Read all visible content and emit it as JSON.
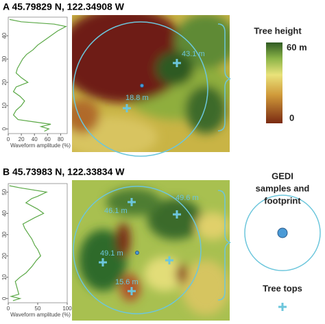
{
  "chart_data": [
    {
      "type": "line",
      "xlabel": "Waveform amplitude (%)",
      "color": "#5aa845",
      "x": [
        55,
        62,
        50,
        65,
        40,
        15,
        8,
        12,
        20,
        25,
        18,
        8,
        12,
        30,
        20,
        12,
        14,
        18,
        22,
        28,
        38,
        45,
        55,
        65,
        75,
        88,
        70,
        20,
        2
      ],
      "values": [
        -1,
        0,
        1,
        2,
        3,
        4,
        6,
        8,
        10,
        12,
        14,
        16,
        18,
        20,
        22,
        24,
        26,
        28,
        30,
        32,
        34,
        36,
        38,
        40,
        42,
        44,
        45,
        46,
        47
      ],
      "xlim": [
        0,
        90
      ],
      "xticks": [
        0,
        20,
        40,
        60,
        80
      ],
      "ylim": [
        -2,
        48
      ],
      "yticks": [
        0,
        10,
        20,
        30,
        40
      ]
    },
    {
      "type": "line",
      "xlabel": "Waveform amplitude (%)",
      "color": "#5aa845",
      "x": [
        8,
        20,
        5,
        18,
        15,
        12,
        20,
        30,
        40,
        48,
        55,
        50,
        45,
        40,
        35,
        28,
        25,
        45,
        60,
        50,
        30,
        40,
        50,
        65,
        20,
        2
      ],
      "values": [
        -1,
        0,
        1,
        2,
        5,
        8,
        10,
        12,
        15,
        18,
        20,
        23,
        25,
        28,
        30,
        33,
        35,
        38,
        40,
        42,
        45,
        47,
        48,
        50,
        52,
        53
      ],
      "xlim": [
        0,
        100
      ],
      "xticks": [
        0,
        50,
        100
      ],
      "ylim": [
        -2,
        54
      ],
      "yticks": [
        0,
        10,
        20,
        30,
        40,
        50
      ]
    }
  ],
  "panels": [
    {
      "title": "A 45.79829 N, 122.34908 W",
      "tree_tops": [
        "43.1 m",
        "18.8 m"
      ]
    },
    {
      "title": "B 45.73983 N, 122.33834 W",
      "tree_tops": [
        "46.1 m",
        "49.6 m",
        "49.1 m",
        "15.6 m"
      ]
    }
  ],
  "legend": {
    "title": "Tree height",
    "max": "60 m",
    "min": "0",
    "gedi": [
      "GEDI",
      "samples and",
      "footprint"
    ],
    "tree_tops": "Tree tops"
  }
}
